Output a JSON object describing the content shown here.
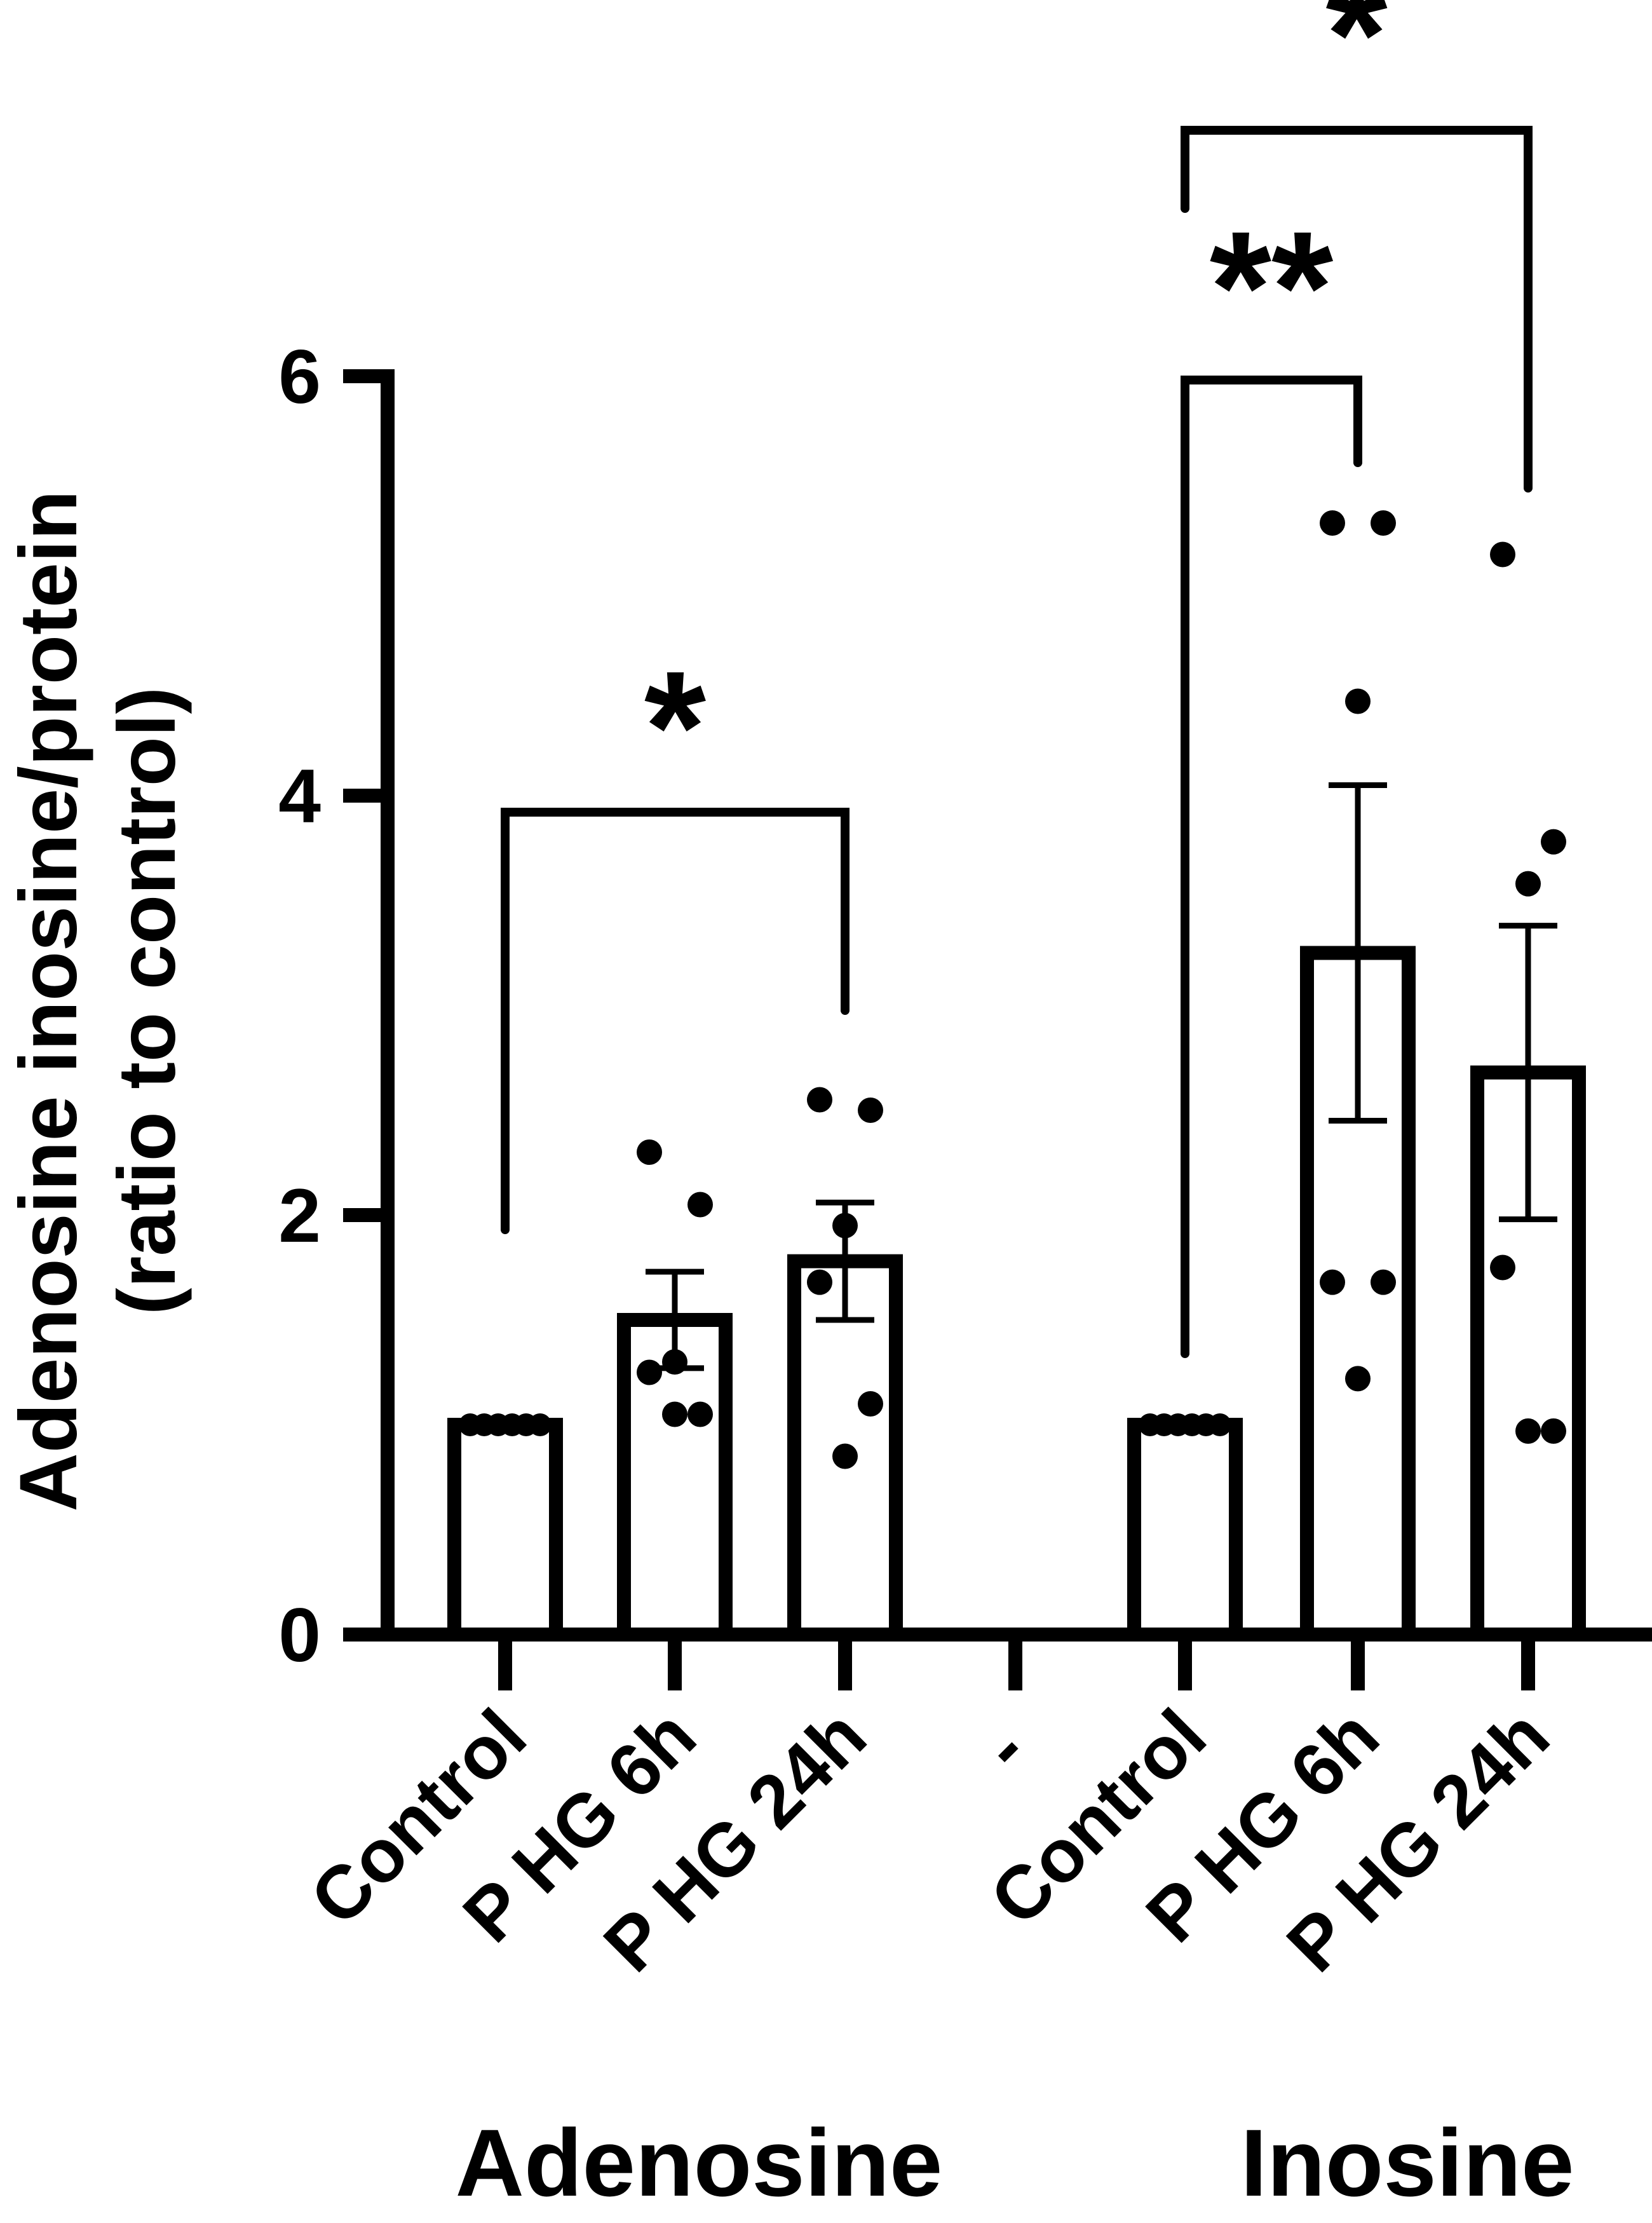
{
  "chart_data": {
    "type": "bar",
    "ylabel_line1": "Adenosine inosine/protein",
    "ylabel_line2": "(ratio to control)",
    "ylim": [
      0,
      6
    ],
    "yticks": [
      "0",
      "2",
      "4",
      "6"
    ],
    "separator_label": "-",
    "groups": [
      {
        "name": "Adenosine",
        "categories": [
          "Control",
          "P HG 6h",
          "P HG 24h"
        ],
        "means": [
          1.0,
          1.5,
          1.78
        ],
        "errors": [
          0,
          0.23,
          0.28
        ],
        "points": [
          [
            1.0,
            1.0,
            1.0,
            1.0,
            1.0,
            1.0
          ],
          [
            2.3,
            2.05,
            1.3,
            1.25,
            1.05,
            1.05
          ],
          [
            2.55,
            2.5,
            1.95,
            1.68,
            1.1,
            0.85
          ]
        ]
      },
      {
        "name": "Inosine",
        "categories": [
          "Control",
          "P HG 6h",
          "P HG 24h"
        ],
        "means": [
          1.0,
          3.25,
          2.68
        ],
        "errors": [
          0,
          0.8,
          0.7
        ],
        "points": [
          [
            1.0,
            1.0,
            1.0,
            1.0,
            1.0,
            1.0
          ],
          [
            5.3,
            5.3,
            4.45,
            1.68,
            1.68,
            1.22
          ],
          [
            5.15,
            3.78,
            3.58,
            1.75,
            0.97,
            0.97
          ]
        ]
      }
    ],
    "annotations": [
      {
        "label": "*",
        "group": 0,
        "from": 0,
        "to": 2
      },
      {
        "label": "**",
        "group": 1,
        "from": 0,
        "to": 1
      },
      {
        "label": "*",
        "group": 1,
        "from": 0,
        "to": 2
      }
    ]
  }
}
